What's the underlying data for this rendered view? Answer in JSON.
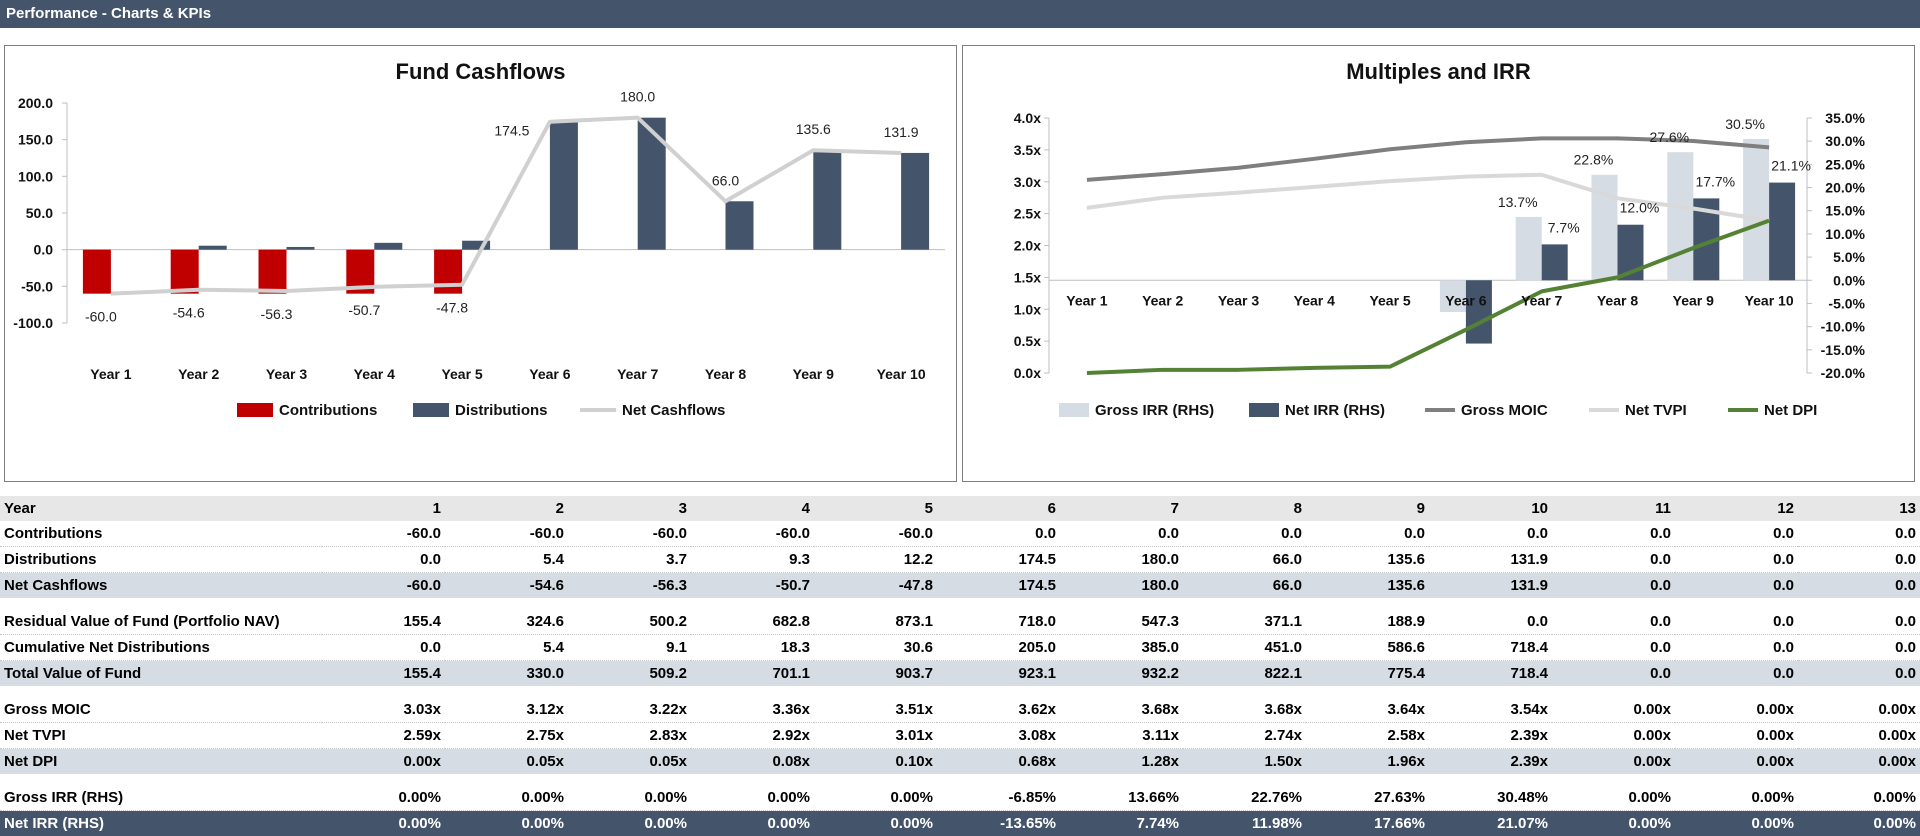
{
  "window": {
    "title": "Performance - Charts & KPIs"
  },
  "colors": {
    "header_bg": "#44546a",
    "contributions": "#c00000",
    "distributions": "#44546a",
    "net_cashflows": "#d0d0d0",
    "gross_irr": "#d6dce4",
    "net_irr": "#44546a",
    "gross_moic": "#7f7f7f",
    "net_tvpi": "#d9d9d9",
    "net_dpi": "#548235",
    "band_row": "#d6dce4"
  },
  "chart_data": [
    {
      "type": "bar",
      "title": "Fund Cashflows",
      "categories": [
        "Year 1",
        "Year 2",
        "Year 3",
        "Year 4",
        "Year 5",
        "Year 6",
        "Year 7",
        "Year 8",
        "Year 9",
        "Year 10"
      ],
      "series": [
        {
          "name": "Contributions",
          "type": "bar",
          "values": [
            -60.0,
            -60.0,
            -60.0,
            -60.0,
            -60.0,
            0.0,
            0.0,
            0.0,
            0.0,
            0.0
          ]
        },
        {
          "name": "Distributions",
          "type": "bar",
          "values": [
            0.0,
            5.4,
            3.7,
            9.3,
            12.2,
            174.5,
            180.0,
            66.0,
            135.6,
            131.9
          ]
        },
        {
          "name": "Net Cashflows",
          "type": "line",
          "values": [
            -60.0,
            -54.6,
            -56.3,
            -50.7,
            -47.8,
            174.5,
            180.0,
            66.0,
            135.6,
            131.9
          ]
        }
      ],
      "data_labels": [
        "-60.0",
        "-54.6",
        "-56.3",
        "-50.7",
        "-47.8",
        "174.5",
        "180.0",
        "66.0",
        "135.6",
        "131.9"
      ],
      "y_ticks": [
        "200.0",
        "150.0",
        "100.0",
        "50.0",
        "0.0",
        "-50.0",
        "-100.0"
      ],
      "ylim": [
        -100,
        200
      ],
      "legend": "bottom",
      "grid": false
    },
    {
      "type": "bar",
      "title": "Multiples and IRR",
      "categories": [
        "Year 1",
        "Year 2",
        "Year 3",
        "Year 4",
        "Year 5",
        "Year 6",
        "Year 7",
        "Year 8",
        "Year 9",
        "Year 10"
      ],
      "series": [
        {
          "name": "Gross IRR (RHS)",
          "type": "bar",
          "axis": "right",
          "values": [
            0.0,
            0.0,
            0.0,
            0.0,
            0.0,
            -6.85,
            13.66,
            22.76,
            27.63,
            30.48
          ]
        },
        {
          "name": "Net IRR (RHS)",
          "type": "bar",
          "axis": "right",
          "values": [
            0.0,
            0.0,
            0.0,
            0.0,
            0.0,
            -13.65,
            7.74,
            11.98,
            17.66,
            21.07
          ]
        },
        {
          "name": "Gross MOIC",
          "type": "line",
          "axis": "left",
          "values": [
            3.03,
            3.12,
            3.22,
            3.36,
            3.51,
            3.62,
            3.68,
            3.68,
            3.64,
            3.54
          ]
        },
        {
          "name": "Net TVPI",
          "type": "line",
          "axis": "left",
          "values": [
            2.59,
            2.75,
            2.83,
            2.92,
            3.01,
            3.08,
            3.11,
            2.74,
            2.58,
            2.39
          ]
        },
        {
          "name": "Net DPI",
          "type": "line",
          "axis": "left",
          "values": [
            0.0,
            0.05,
            0.05,
            0.08,
            0.1,
            0.68,
            1.28,
            1.5,
            1.96,
            2.39
          ]
        }
      ],
      "gross_irr_labels": [
        "",
        "",
        "",
        "",
        "",
        "",
        "13.7%",
        "22.8%",
        "27.6%",
        "30.5%"
      ],
      "net_irr_labels": [
        "",
        "",
        "",
        "",
        "",
        "",
        "7.7%",
        "12.0%",
        "17.7%",
        "21.1%"
      ],
      "y_left_ticks": [
        "4.0x",
        "3.5x",
        "3.0x",
        "2.5x",
        "2.0x",
        "1.5x",
        "1.0x",
        "0.5x",
        "0.0x"
      ],
      "y_right_ticks": [
        "35.0%",
        "30.0%",
        "25.0%",
        "20.0%",
        "15.0%",
        "10.0%",
        "5.0%",
        "0.0%",
        "-5.0%",
        "-10.0%",
        "-15.0%",
        "-20.0%"
      ],
      "ylim_left": [
        0,
        4
      ],
      "ylim_right": [
        -20,
        35
      ],
      "legend": "bottom",
      "grid": false
    }
  ],
  "table": {
    "header": {
      "label": "Year",
      "values": [
        "1",
        "2",
        "3",
        "4",
        "5",
        "6",
        "7",
        "8",
        "9",
        "10",
        "11",
        "12",
        "13"
      ]
    },
    "groups": [
      [
        {
          "label": "Contributions",
          "style": "normal",
          "values": [
            "-60.0",
            "-60.0",
            "-60.0",
            "-60.0",
            "-60.0",
            "0.0",
            "0.0",
            "0.0",
            "0.0",
            "0.0",
            "0.0",
            "0.0",
            "0.0"
          ]
        },
        {
          "label": "Distributions",
          "style": "normal",
          "values": [
            "0.0",
            "5.4",
            "3.7",
            "9.3",
            "12.2",
            "174.5",
            "180.0",
            "66.0",
            "135.6",
            "131.9",
            "0.0",
            "0.0",
            "0.0"
          ]
        },
        {
          "label": "Net Cashflows",
          "style": "band",
          "values": [
            "-60.0",
            "-54.6",
            "-56.3",
            "-50.7",
            "-47.8",
            "174.5",
            "180.0",
            "66.0",
            "135.6",
            "131.9",
            "0.0",
            "0.0",
            "0.0"
          ]
        }
      ],
      [
        {
          "label": "Residual Value of Fund (Portfolio NAV)",
          "style": "normal",
          "values": [
            "155.4",
            "324.6",
            "500.2",
            "682.8",
            "873.1",
            "718.0",
            "547.3",
            "371.1",
            "188.9",
            "0.0",
            "0.0",
            "0.0",
            "0.0"
          ]
        },
        {
          "label": "Cumulative Net Distributions",
          "style": "normal",
          "values": [
            "0.0",
            "5.4",
            "9.1",
            "18.3",
            "30.6",
            "205.0",
            "385.0",
            "451.0",
            "586.6",
            "718.4",
            "0.0",
            "0.0",
            "0.0"
          ]
        },
        {
          "label": "Total Value of Fund",
          "style": "band",
          "values": [
            "155.4",
            "330.0",
            "509.2",
            "701.1",
            "903.7",
            "923.1",
            "932.2",
            "822.1",
            "775.4",
            "718.4",
            "0.0",
            "0.0",
            "0.0"
          ]
        }
      ],
      [
        {
          "label": "Gross MOIC",
          "style": "normal",
          "values": [
            "3.03x",
            "3.12x",
            "3.22x",
            "3.36x",
            "3.51x",
            "3.62x",
            "3.68x",
            "3.68x",
            "3.64x",
            "3.54x",
            "0.00x",
            "0.00x",
            "0.00x"
          ]
        },
        {
          "label": "Net TVPI",
          "style": "normal",
          "values": [
            "2.59x",
            "2.75x",
            "2.83x",
            "2.92x",
            "3.01x",
            "3.08x",
            "3.11x",
            "2.74x",
            "2.58x",
            "2.39x",
            "0.00x",
            "0.00x",
            "0.00x"
          ]
        },
        {
          "label": "Net DPI",
          "style": "band",
          "values": [
            "0.00x",
            "0.05x",
            "0.05x",
            "0.08x",
            "0.10x",
            "0.68x",
            "1.28x",
            "1.50x",
            "1.96x",
            "2.39x",
            "0.00x",
            "0.00x",
            "0.00x"
          ]
        }
      ],
      [
        {
          "label": "Gross IRR (RHS)",
          "style": "normal",
          "values": [
            "0.00%",
            "0.00%",
            "0.00%",
            "0.00%",
            "0.00%",
            "-6.85%",
            "13.66%",
            "22.76%",
            "27.63%",
            "30.48%",
            "0.00%",
            "0.00%",
            "0.00%"
          ]
        },
        {
          "label": "Net IRR (RHS)",
          "style": "dark",
          "values": [
            "0.00%",
            "0.00%",
            "0.00%",
            "0.00%",
            "0.00%",
            "-13.65%",
            "7.74%",
            "11.98%",
            "17.66%",
            "21.07%",
            "0.00%",
            "0.00%",
            "0.00%"
          ]
        }
      ]
    ]
  }
}
